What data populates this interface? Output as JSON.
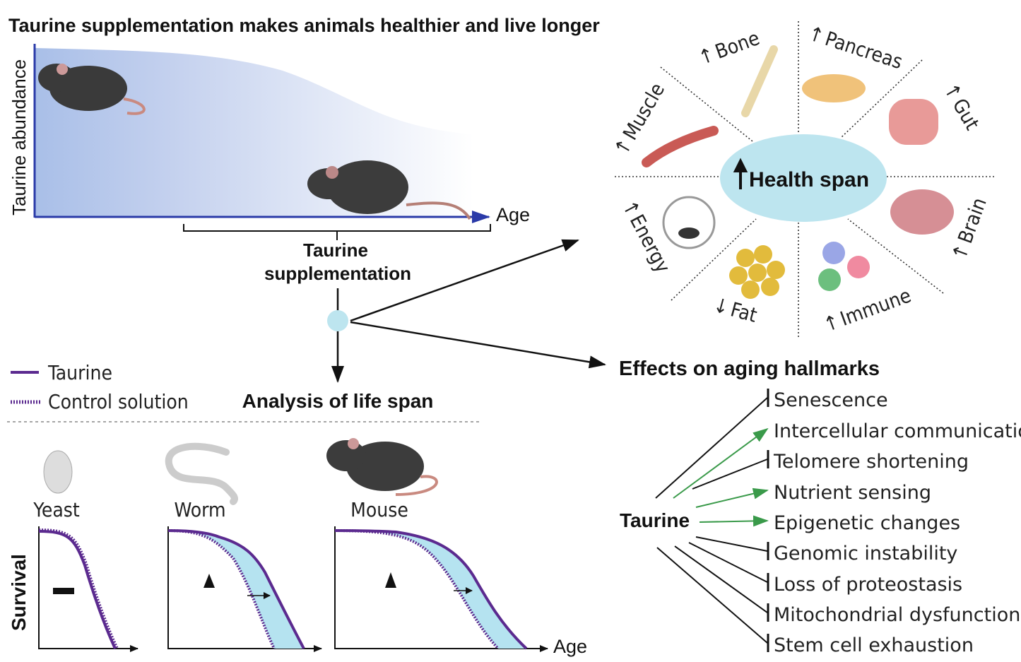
{
  "title": "Taurine supplementation makes animals healthier and live longer",
  "abundance_panel": {
    "y_label": "Taurine abundance",
    "x_label": "Age",
    "bracket_label_line1": "Taurine",
    "bracket_label_line2": "supplementation"
  },
  "health_span": {
    "center_label": "Health span",
    "center_arrow": "up",
    "organs": [
      {
        "label": "Bone",
        "arrow": "↑"
      },
      {
        "label": "Pancreas",
        "arrow": "↑"
      },
      {
        "label": "Gut",
        "arrow": "↑"
      },
      {
        "label": "Brain",
        "arrow": "↑"
      },
      {
        "label": "Immune",
        "arrow": "↑"
      },
      {
        "label": "Fat",
        "arrow": "↓"
      },
      {
        "label": "Energy",
        "arrow": "↑"
      },
      {
        "label": "Muscle",
        "arrow": "↑"
      }
    ],
    "center_color": "#bde5ef"
  },
  "legend": {
    "taurine": "Taurine",
    "control": "Control solution",
    "color": "#5b2a8f"
  },
  "lifespan": {
    "heading": "Analysis of life span",
    "y_label": "Survival",
    "x_label": "Age",
    "organisms": [
      {
        "label": "Yeast",
        "effect": "no change"
      },
      {
        "label": "Worm",
        "effect": "increase"
      },
      {
        "label": "Mouse",
        "effect": "increase"
      }
    ],
    "fill_color": "#b5e3f0"
  },
  "hallmarks": {
    "heading": "Effects on aging hallmarks",
    "source": "Taurine",
    "items": [
      {
        "label": "Senescence",
        "effect": "inhibits"
      },
      {
        "label": "Intercellular communication",
        "effect": "promotes"
      },
      {
        "label": "Telomere shortening",
        "effect": "inhibits"
      },
      {
        "label": "Nutrient sensing",
        "effect": "promotes"
      },
      {
        "label": "Epigenetic changes",
        "effect": "promotes"
      },
      {
        "label": "Genomic instability",
        "effect": "inhibits"
      },
      {
        "label": "Loss of proteostasis",
        "effect": "inhibits"
      },
      {
        "label": "Mitochondrial dysfunction",
        "effect": "inhibits"
      },
      {
        "label": "Stem cell exhaustion",
        "effect": "inhibits"
      }
    ],
    "promote_color": "#3a9a4a",
    "inhibit_color": "#111111"
  }
}
